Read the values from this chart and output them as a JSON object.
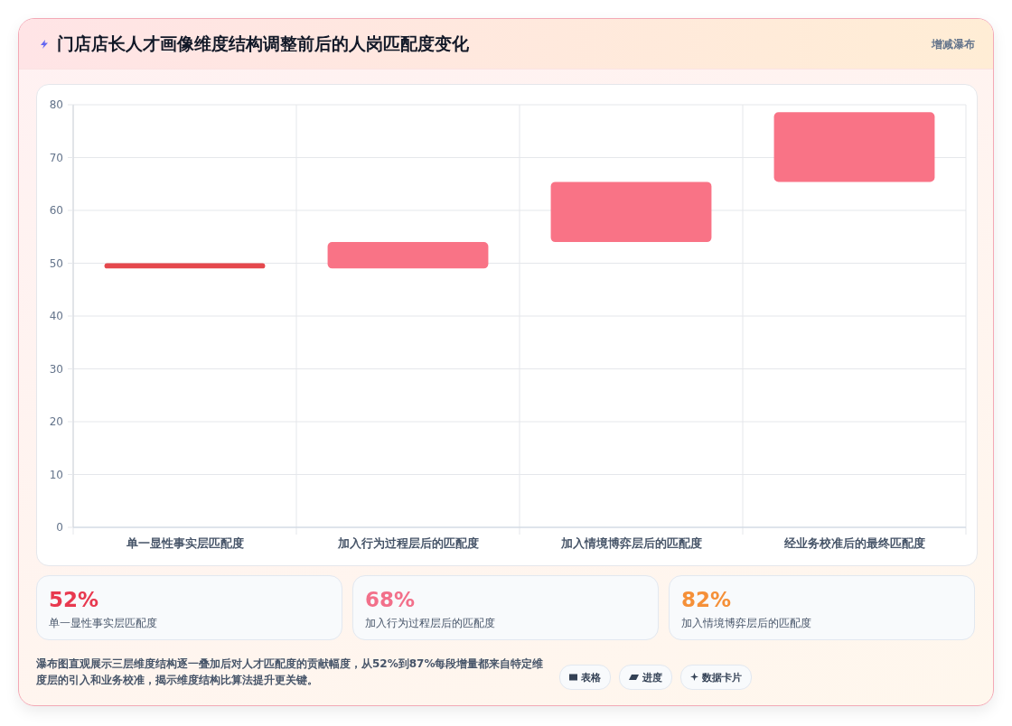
{
  "chart_data": {
    "type": "bar",
    "title": "门店店长人才画像维度结构调整前后的人岗匹配度变化",
    "categories": [
      "单一显性事实层匹配度",
      "加入行为过程层后的匹配度",
      "加入情境博弈层后的匹配度",
      "经业务校准后的最终匹配度"
    ],
    "base": [
      49,
      49,
      54,
      65.4
    ],
    "values": [
      1,
      5,
      11.4,
      13.2
    ],
    "colors": [
      "#e5484d",
      "#f97386",
      "#f97386",
      "#f97386"
    ],
    "ylim": [
      0,
      80
    ],
    "yticks": [
      0,
      10,
      20,
      30,
      40,
      50,
      60,
      70,
      80
    ],
    "grid": true,
    "annotations": [
      "增减瀑布",
      "52%",
      "单一显性事实层匹配度",
      "68%",
      "加入行为过程层后的匹配度",
      "82%",
      "加入情境博弈层后的匹配度",
      "瀑布图直观展示三层维度结构逐一叠加后对人才匹配度的贡献幅度，从52%到87%每段增量都来自特定维度层的引入和业务校准，揭示维度结构比算法提升更关键。",
      "表格",
      "进度",
      "数据卡片"
    ]
  }
}
